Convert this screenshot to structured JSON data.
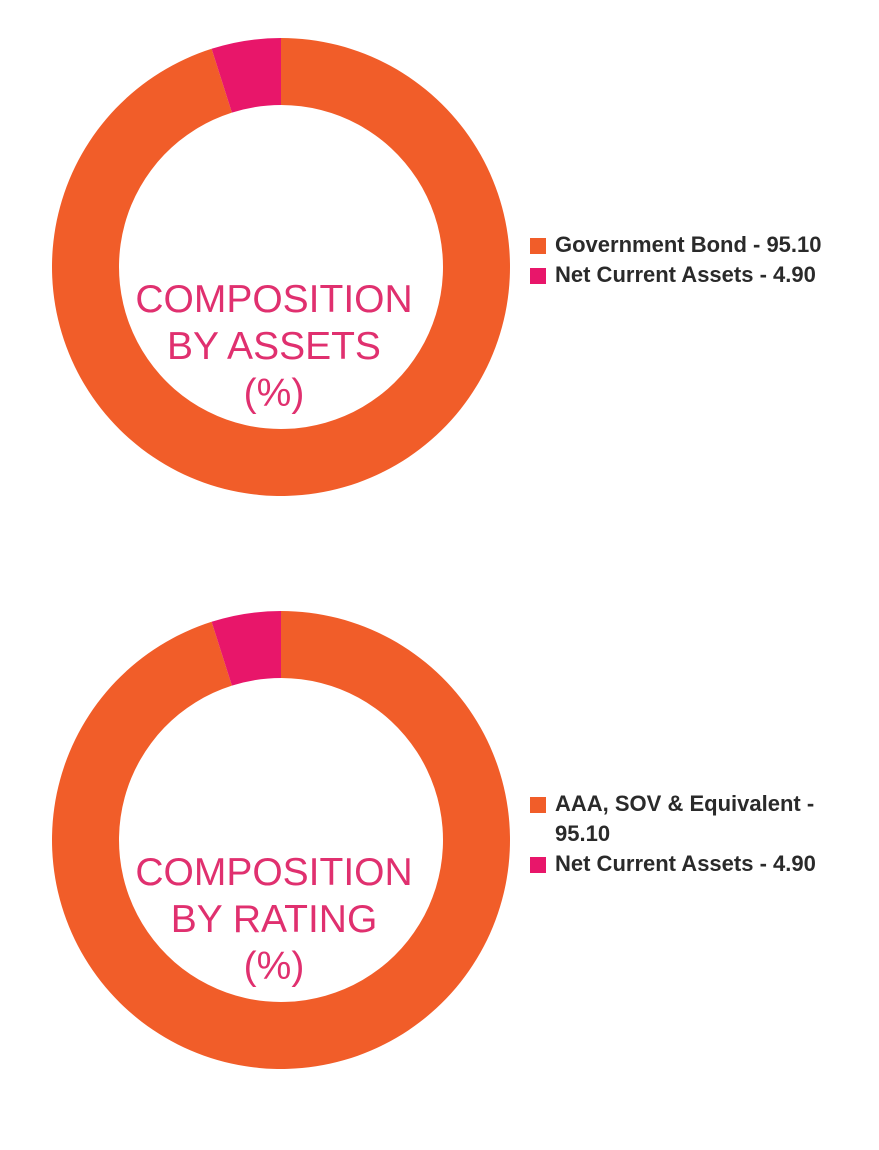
{
  "colors": {
    "orange": "#f15d29",
    "pink": "#e8166a",
    "label": "#e0306f"
  },
  "chart_data": [
    {
      "type": "pie",
      "title_lines": [
        "COMPOSITION",
        "BY ASSETS",
        "(%)"
      ],
      "slices": [
        {
          "label": "Government Bond - 95.10",
          "value": 95.1,
          "color": "#f15d29"
        },
        {
          "label": "Net Current Assets - 4.90",
          "value": 4.9,
          "color": "#e8166a"
        }
      ],
      "legend": "right"
    },
    {
      "type": "pie",
      "title_lines": [
        "COMPOSITION",
        "BY RATING",
        "(%)"
      ],
      "slices": [
        {
          "label": "AAA, SOV & Equivalent - 95.10",
          "value": 95.1,
          "color": "#f15d29"
        },
        {
          "label": "Net Current Assets - 4.90",
          "value": 4.9,
          "color": "#e8166a"
        }
      ],
      "legend": "right"
    }
  ]
}
